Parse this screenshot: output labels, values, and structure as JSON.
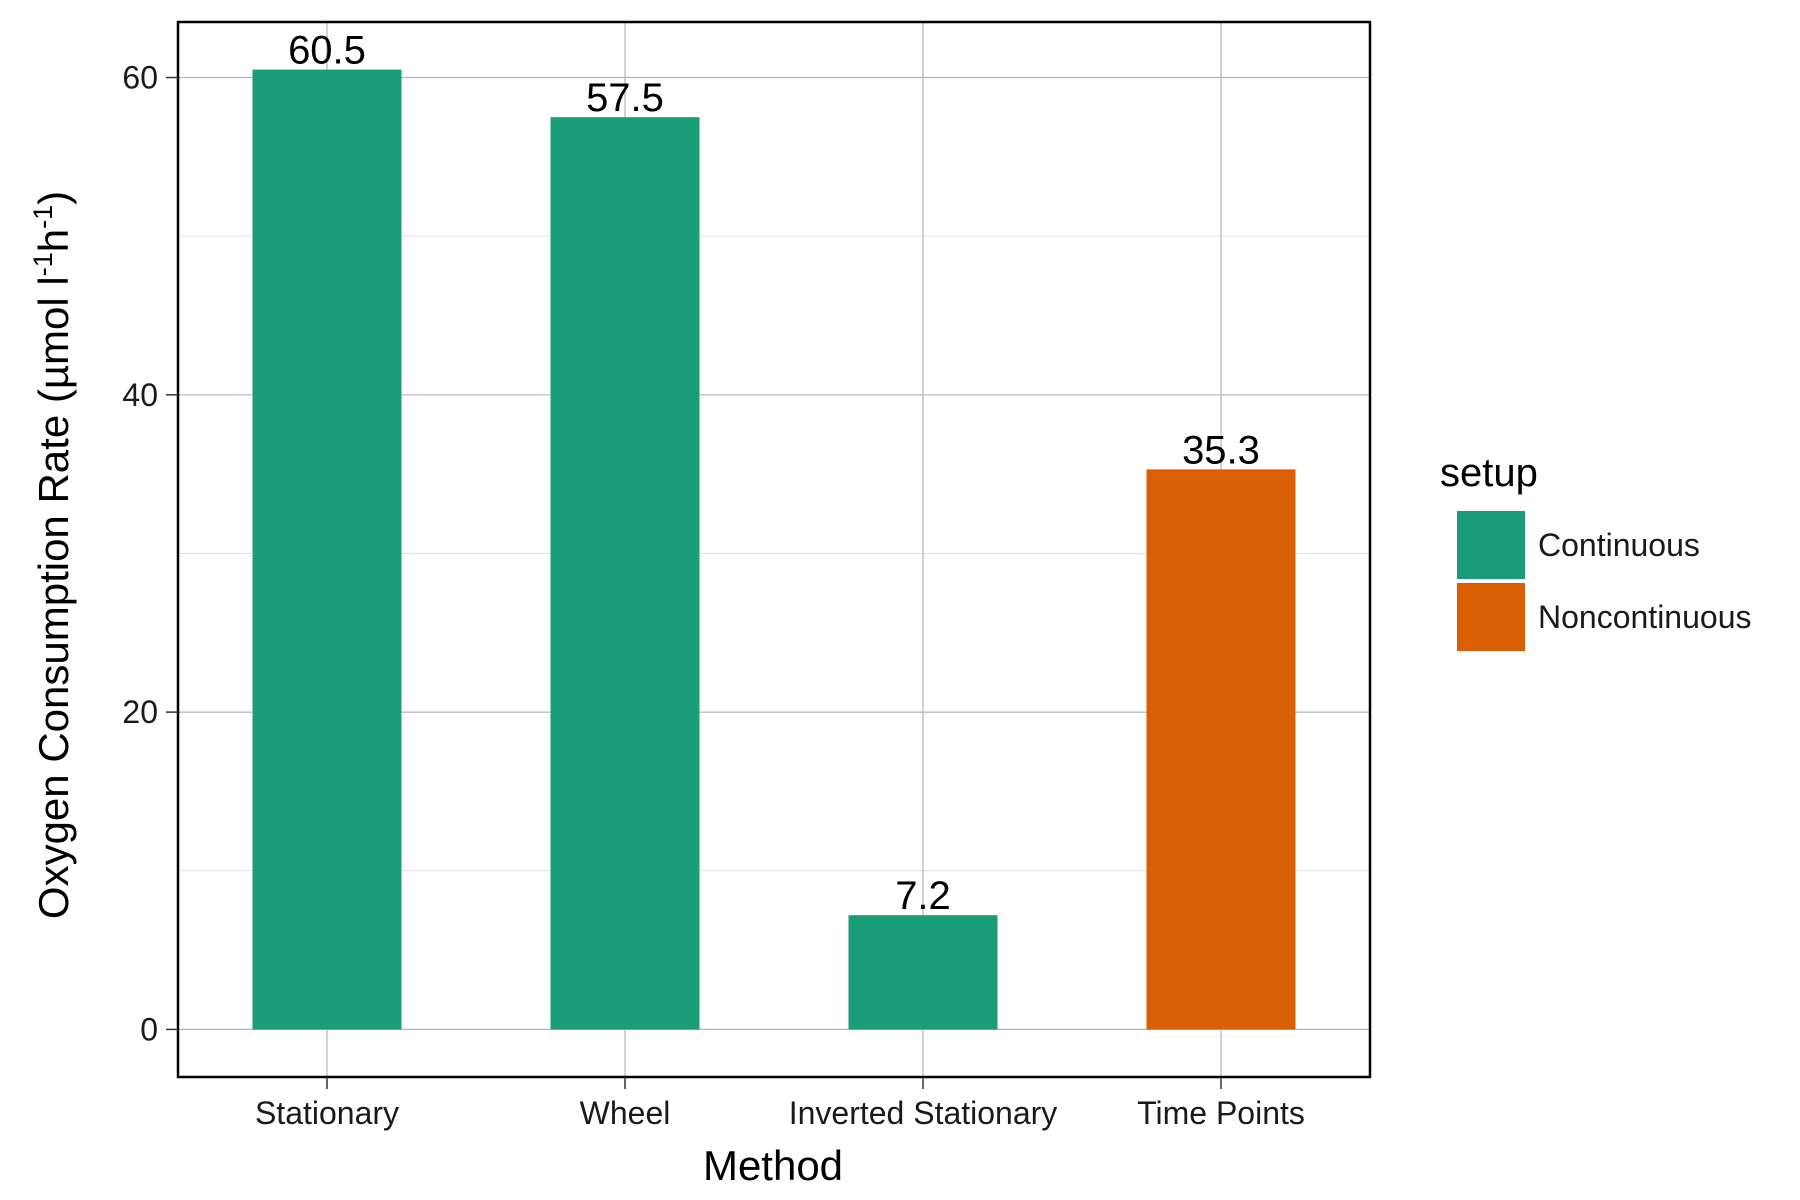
{
  "chart_data": {
    "type": "bar",
    "title": "",
    "xlabel": "Method",
    "ylabel": {
      "prefix": "Oxygen Consumption Rate (µmol l",
      "sup1": "-1",
      "mid": "h",
      "sup2": "-1",
      "suffix": ")"
    },
    "ylim": [
      -3,
      63.5
    ],
    "yticks": [
      0,
      20,
      40,
      60
    ],
    "yticks_minor": [
      10,
      30,
      50
    ],
    "grid": true,
    "categories": [
      "Stationary",
      "Wheel",
      "Inverted Stationary",
      "Time Points"
    ],
    "values": [
      60.5,
      57.5,
      7.2,
      35.3
    ],
    "value_labels": [
      "60.5",
      "57.5",
      "7.2",
      "35.3"
    ],
    "groups": [
      "Continuous",
      "Continuous",
      "Continuous",
      "Noncontinuous"
    ],
    "legend": {
      "title": "setup",
      "placement": "right",
      "entries": [
        {
          "label": "Continuous",
          "color": "#1b9e77"
        },
        {
          "label": "Noncontinuous",
          "color": "#d95f02"
        }
      ]
    }
  }
}
